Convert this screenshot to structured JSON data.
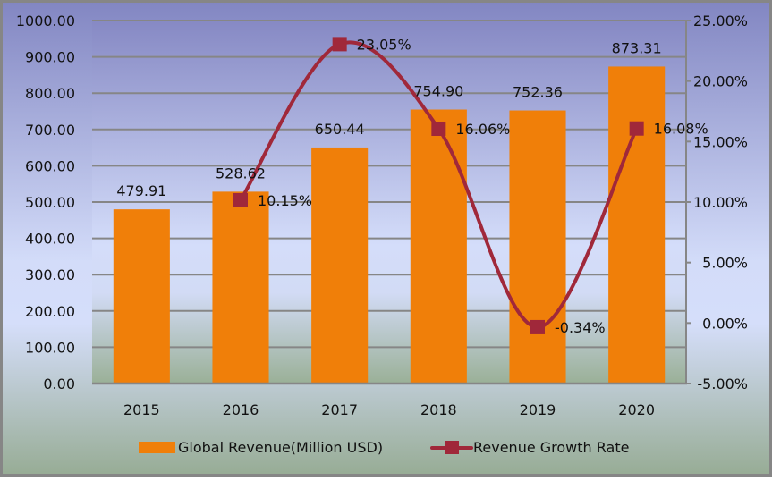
{
  "chart_data": {
    "type": "bar+line",
    "title": "",
    "categories": [
      "2015",
      "2016",
      "2017",
      "2018",
      "2019",
      "2020"
    ],
    "series": [
      {
        "name": "Global Revenue(Million USD)",
        "type": "bar",
        "axis": "left",
        "values": [
          479.91,
          528.62,
          650.44,
          754.9,
          752.36,
          873.31
        ],
        "labels": [
          "479.91",
          "528.62",
          "650.44",
          "754.90",
          "752.36",
          "873.31"
        ],
        "color": "#F07F09"
      },
      {
        "name": "Revenue Growth Rate",
        "type": "line",
        "axis": "right",
        "smooth": true,
        "marker": "square",
        "values": [
          null,
          10.15,
          23.05,
          16.06,
          -0.34,
          16.08
        ],
        "labels": [
          "",
          "10.15%",
          "23.05%",
          "16.06%",
          "-0.34%",
          "16.08%"
        ],
        "color": "#A0283A"
      }
    ],
    "y_left": {
      "label": "",
      "range": [
        0,
        1000
      ],
      "ticks": [
        0,
        100,
        200,
        300,
        400,
        500,
        600,
        700,
        800,
        900,
        1000
      ],
      "tick_labels": [
        "0.00",
        "100.00",
        "200.00",
        "300.00",
        "400.00",
        "500.00",
        "600.00",
        "700.00",
        "800.00",
        "900.00",
        "1000.00"
      ]
    },
    "y_right": {
      "label": "",
      "range": [
        -5,
        25
      ],
      "ticks": [
        -5,
        0,
        5,
        10,
        15,
        20,
        25
      ],
      "tick_labels": [
        "-5.00%",
        "0.00%",
        "5.00%",
        "10.00%",
        "15.00%",
        "20.00%",
        "25.00%"
      ]
    },
    "xlabel": "",
    "grid": true,
    "legend": {
      "position": "bottom",
      "entries": [
        "Global Revenue(Million USD)",
        "Revenue Growth Rate"
      ]
    },
    "colors": {
      "background_top": "#8588C4",
      "background_mid": "#D4DDFA",
      "background_bottom": "#98AD96",
      "gridline": "#868686",
      "border": "#868686"
    }
  }
}
